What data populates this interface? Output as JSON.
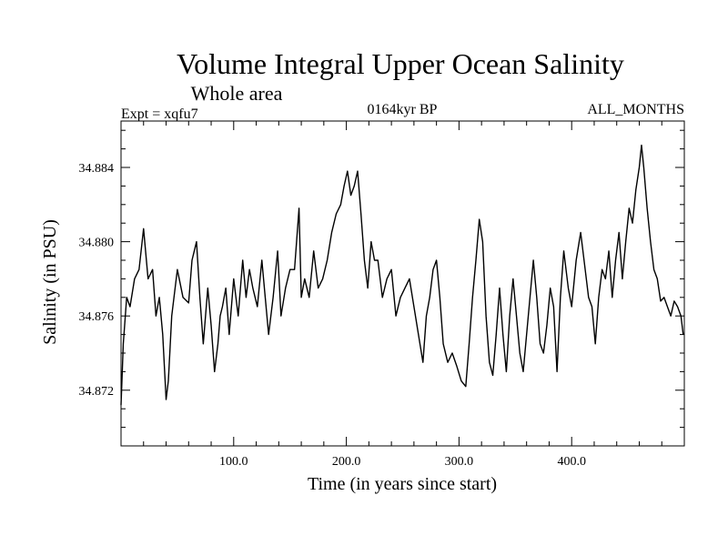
{
  "header": {
    "title": "Volume Integral Upper Ocean Salinity",
    "subtitle": "Whole area",
    "expt": "Expt = xqfu7",
    "period": "0164kyr BP",
    "months": "ALL_MONTHS"
  },
  "chart_data": {
    "type": "line",
    "title": "Volume Integral Upper Ocean Salinity",
    "subtitle": "Whole area",
    "xlabel": "Time (in years since start)",
    "ylabel": "Salinity (in PSU)",
    "xlim": [
      0,
      500
    ],
    "ylim": [
      34.869,
      34.8865
    ],
    "x_ticks": [
      100,
      200,
      300,
      400
    ],
    "x_tick_labels": [
      "100.0",
      "200.0",
      "300.0",
      "400.0"
    ],
    "y_ticks": [
      34.872,
      34.876,
      34.88,
      34.884
    ],
    "y_tick_labels": [
      "34.872",
      "34.876",
      "34.880",
      "34.884"
    ],
    "grid": false,
    "series": [
      {
        "name": "Salinity",
        "x": [
          0,
          2,
          5,
          8,
          12,
          16,
          20,
          24,
          28,
          31,
          34,
          37,
          40,
          42,
          45,
          50,
          55,
          60,
          63,
          67,
          70,
          73,
          77,
          80,
          83,
          86,
          88,
          90,
          93,
          96,
          100,
          104,
          108,
          111,
          114,
          117,
          121,
          125,
          128,
          131,
          135,
          139,
          142,
          146,
          150,
          154,
          158,
          160,
          163,
          167,
          171,
          175,
          179,
          183,
          187,
          191,
          195,
          198,
          201,
          204,
          207,
          210,
          213,
          216,
          219,
          222,
          225,
          228,
          232,
          236,
          240,
          244,
          248,
          252,
          256,
          260,
          264,
          268,
          271,
          274,
          277,
          280,
          283,
          286,
          290,
          294,
          298,
          302,
          306,
          309,
          312,
          315,
          318,
          321,
          324,
          327,
          330,
          333,
          336,
          339,
          342,
          345,
          348,
          351,
          354,
          357,
          360,
          363,
          366,
          369,
          372,
          375,
          378,
          381,
          384,
          387,
          390,
          393,
          397,
          400,
          404,
          408,
          412,
          415,
          418,
          421,
          424,
          427,
          430,
          433,
          436,
          439,
          442,
          445,
          448,
          451,
          454,
          457,
          460,
          462,
          464,
          467,
          470,
          473,
          476,
          479,
          482,
          485,
          488,
          491,
          494,
          497,
          499
        ],
        "values": [
          34.8712,
          34.8745,
          34.877,
          34.8765,
          34.878,
          34.8785,
          34.8807,
          34.878,
          34.8785,
          34.876,
          34.877,
          34.875,
          34.8715,
          34.8725,
          34.876,
          34.8785,
          34.877,
          34.8767,
          34.879,
          34.88,
          34.877,
          34.8745,
          34.8775,
          34.8755,
          34.873,
          34.8745,
          34.876,
          34.8765,
          34.8775,
          34.875,
          34.878,
          34.876,
          34.879,
          34.877,
          34.8785,
          34.8775,
          34.8765,
          34.879,
          34.877,
          34.875,
          34.877,
          34.8795,
          34.876,
          34.8775,
          34.8785,
          34.8785,
          34.8818,
          34.877,
          34.878,
          34.877,
          34.8795,
          34.8775,
          34.878,
          34.879,
          34.8805,
          34.8815,
          34.882,
          34.883,
          34.8838,
          34.8825,
          34.883,
          34.8838,
          34.8815,
          34.879,
          34.8775,
          34.88,
          34.879,
          34.879,
          34.877,
          34.878,
          34.8785,
          34.876,
          34.877,
          34.8775,
          34.878,
          34.8765,
          34.875,
          34.8735,
          34.876,
          34.877,
          34.8785,
          34.879,
          34.877,
          34.8745,
          34.8735,
          34.874,
          34.8733,
          34.8725,
          34.8722,
          34.8745,
          34.877,
          34.879,
          34.8812,
          34.88,
          34.876,
          34.8735,
          34.8728,
          34.875,
          34.8775,
          34.875,
          34.873,
          34.876,
          34.878,
          34.876,
          34.874,
          34.873,
          34.875,
          34.877,
          34.879,
          34.877,
          34.8745,
          34.874,
          34.8755,
          34.8775,
          34.8765,
          34.873,
          34.877,
          34.8795,
          34.8775,
          34.8765,
          34.879,
          34.8805,
          34.8785,
          34.877,
          34.8765,
          34.8745,
          34.877,
          34.8785,
          34.878,
          34.8795,
          34.877,
          34.879,
          34.8805,
          34.878,
          34.88,
          34.8818,
          34.881,
          34.8828,
          34.884,
          34.8852,
          34.884,
          34.8818,
          34.88,
          34.8785,
          34.878,
          34.8768,
          34.877,
          34.8765,
          34.876,
          34.8768,
          34.8765,
          34.876,
          34.875
        ]
      }
    ]
  },
  "labels": {
    "xlabel": "Time (in years since start)",
    "ylabel": "Salinity (in PSU)"
  }
}
